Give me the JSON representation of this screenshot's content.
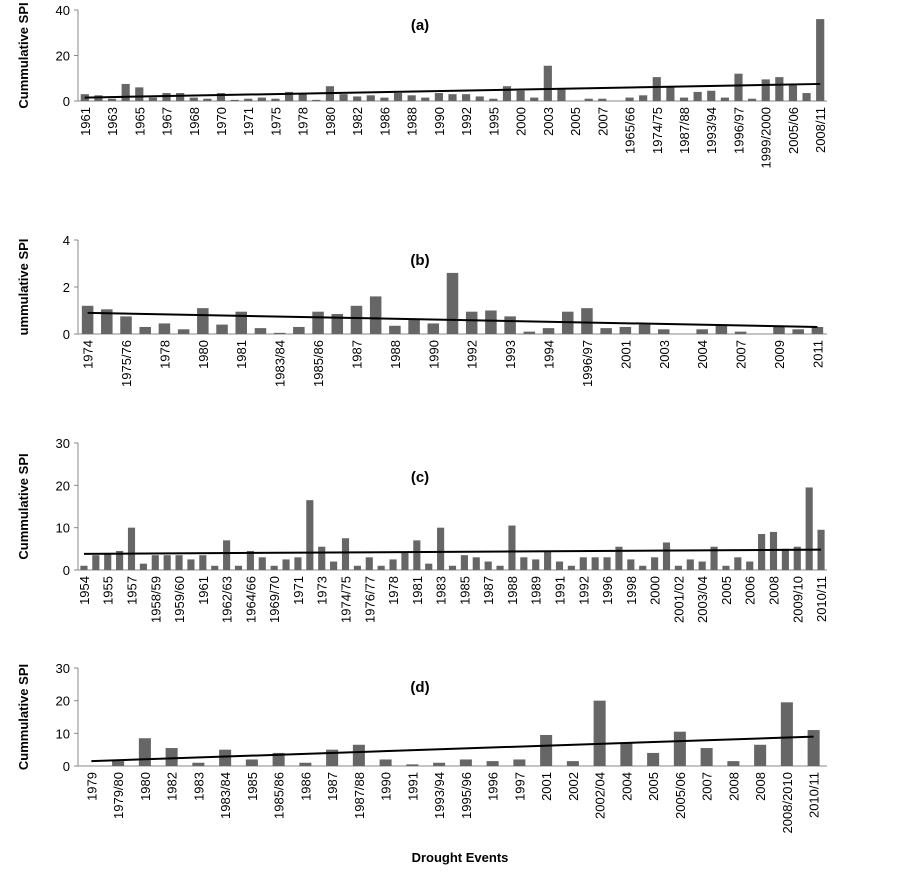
{
  "chart_data": [
    {
      "type": "bar",
      "title": "(a)",
      "ylabel": "Cummulative SPI",
      "color": "#666666",
      "categories": [
        "1961",
        null,
        "1963",
        null,
        "1965",
        null,
        "1967",
        null,
        "1968",
        null,
        "1970",
        null,
        "1971",
        null,
        "1975",
        null,
        "1978",
        null,
        "1980",
        null,
        "1982",
        null,
        "1986",
        null,
        "1988",
        null,
        "1990",
        null,
        "1992",
        null,
        "1995",
        null,
        "2000",
        null,
        "2003",
        null,
        "2005",
        null,
        "2007",
        null,
        "1965/66",
        null,
        "1974/75",
        null,
        "1987/88",
        null,
        "1993/94",
        null,
        "1996/97",
        null,
        "1999/2000",
        null,
        "2005/06",
        null,
        "2008/11"
      ],
      "values": [
        3,
        2.5,
        1,
        7.5,
        6,
        1.5,
        3.5,
        3.5,
        1.5,
        1,
        3.5,
        0.5,
        1,
        1.5,
        1,
        4,
        3,
        0.5,
        6.5,
        3,
        2,
        2.5,
        1.5,
        3.5,
        2.5,
        1.5,
        3.5,
        3,
        3,
        2,
        1,
        6.5,
        4.5,
        1.5,
        15.5,
        5,
        0,
        1,
        1,
        0,
        1.5,
        2.5,
        10.5,
        6,
        1.5,
        4,
        4.5,
        1.5,
        12,
        1,
        9.5,
        10.5,
        7,
        3.5,
        36
      ],
      "ylim": [
        0,
        40
      ],
      "yticks": [
        0,
        20,
        40
      ],
      "trendline": {
        "start": 1.5,
        "end": 7.5
      }
    },
    {
      "type": "bar",
      "title": "(b)",
      "ylabel": "ummulative SPI",
      "color": "#666666",
      "categories": [
        "1974",
        null,
        "1975/76",
        null,
        "1978",
        null,
        "1980",
        null,
        "1981",
        null,
        "1983/84",
        null,
        "1985/86",
        null,
        "1987",
        null,
        "1988",
        null,
        "1990",
        null,
        "1992",
        null,
        "1993",
        null,
        "1994",
        null,
        "1996/97",
        null,
        "2001",
        null,
        "2003",
        null,
        "2004",
        null,
        "2007",
        null,
        "2009",
        null,
        "2011"
      ],
      "values": [
        1.2,
        1.05,
        0.75,
        0.3,
        0.45,
        0.2,
        1.1,
        0.4,
        0.95,
        0.25,
        0.05,
        0.3,
        0.95,
        0.85,
        1.2,
        1.6,
        0.35,
        0.65,
        0.45,
        2.6,
        0.95,
        1.0,
        0.75,
        0.1,
        0.25,
        0.95,
        1.1,
        0.25,
        0.3,
        0.4,
        0.2,
        0,
        0.2,
        0.4,
        0.1,
        0,
        0.35,
        0.2,
        0.3
      ],
      "ylim": [
        0,
        4
      ],
      "yticks": [
        0,
        2,
        4
      ],
      "trendline": {
        "start": 0.9,
        "end": 0.3
      }
    },
    {
      "type": "bar",
      "title": "(c)",
      "ylabel": "Cummulative SPI",
      "color": "#666666",
      "categories": [
        "1954",
        null,
        "1955",
        null,
        "1957",
        null,
        "1958/59",
        null,
        "1959/60",
        null,
        "1961",
        null,
        "1962/63",
        null,
        "1964/66",
        null,
        "1969/70",
        null,
        "1971",
        null,
        "1973",
        null,
        "1974/75",
        null,
        "1976/77",
        null,
        "1978",
        null,
        "1981",
        null,
        "1983",
        null,
        "1985",
        null,
        "1987",
        null,
        "1988",
        null,
        "1989",
        null,
        "1991",
        null,
        "1992",
        null,
        "1996",
        null,
        "1998",
        null,
        "2000",
        null,
        "2001/02",
        null,
        "2003/04",
        null,
        "2005",
        null,
        "2006",
        null,
        "2008",
        null,
        "2009/10",
        null,
        "2010/11"
      ],
      "values": [
        1,
        3.5,
        4,
        4.5,
        10,
        1.5,
        3.5,
        3.5,
        3.5,
        2.5,
        3.5,
        1,
        7,
        1,
        4.5,
        3,
        1,
        2.5,
        3,
        16.5,
        5.5,
        2,
        7.5,
        1,
        3,
        1,
        2.5,
        4,
        7,
        1.5,
        10,
        1,
        3.5,
        3,
        2,
        1,
        10.5,
        3,
        2.5,
        4.5,
        2,
        1,
        3,
        3,
        3,
        5.5,
        2.5,
        1,
        3,
        6.5,
        1,
        2.5,
        2,
        5.5,
        1,
        3,
        2,
        8.5,
        9,
        5,
        5.5,
        19.5,
        9.5
      ],
      "ylim": [
        0,
        30
      ],
      "yticks": [
        0,
        10,
        20,
        30
      ],
      "trendline": {
        "start": 3.8,
        "end": 4.8
      }
    },
    {
      "type": "bar",
      "title": "(d)",
      "ylabel": "Cummulative SPI",
      "xlabel": "Drought Events",
      "color": "#666666",
      "categories": [
        "1979",
        "1979/80",
        "1980",
        "1982",
        "1983",
        "1983/84",
        "1985",
        "1985/86",
        "1986",
        "1987",
        "1987/88",
        "1990",
        "1991",
        "1993/94",
        "1995/96",
        "1996",
        "1997",
        "2001",
        "2002",
        "2002/04",
        "2004",
        "2005",
        "2005/06",
        "2007",
        "2008",
        "2008",
        "2008/2010",
        "2010/11"
      ],
      "values": [
        0,
        1.5,
        8.5,
        5.5,
        1,
        5,
        2,
        4,
        1,
        5,
        6.5,
        2,
        0.5,
        1,
        2,
        1.5,
        2,
        9.5,
        1.5,
        20,
        7,
        4,
        10.5,
        5.5,
        1.5,
        6.5,
        19.5,
        11
      ],
      "ylim": [
        0,
        30
      ],
      "yticks": [
        0,
        10,
        20,
        30
      ],
      "trendline": {
        "start": 1.5,
        "end": 9
      }
    }
  ]
}
